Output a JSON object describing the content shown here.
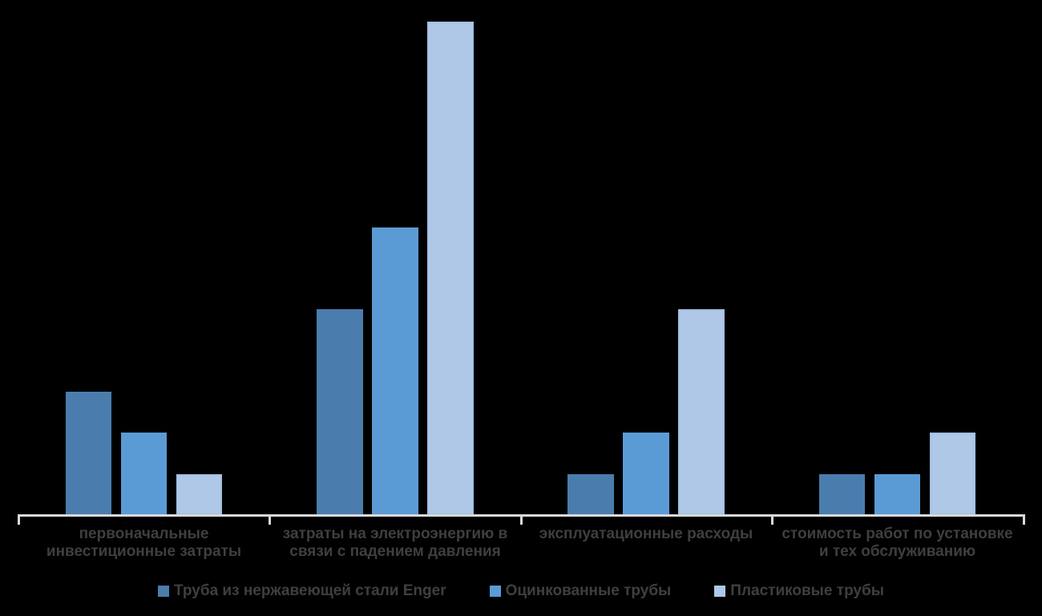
{
  "chart_data": {
    "type": "bar",
    "title": "",
    "xlabel": "",
    "ylabel": "",
    "ylim": [
      0,
      12
    ],
    "grid": false,
    "legend_position": "bottom",
    "background_color": "#000000",
    "axis_color": "#D9D9D9",
    "label_color": "#3F3F3F",
    "categories": [
      "первоначальные инвестиционные затраты",
      "затраты на электроэнергию в связи с падением давления",
      "эксплуатационные расходы",
      "стоимость работ по установке и тех обслуживанию"
    ],
    "category_lines": [
      [
        "первоначальные",
        "инвестиционные затраты"
      ],
      [
        "затраты на электроэнергию в",
        "связи с падением давления"
      ],
      [
        "эксплуатационные расходы"
      ],
      [
        "стоимость работ по установке",
        "и тех обслуживанию"
      ]
    ],
    "series": [
      {
        "name": "Труба  из нержавеющей стали Enger",
        "color": "#4A7DAE",
        "values": [
          3,
          5,
          1,
          1
        ]
      },
      {
        "name": "Оцинкованные трубы",
        "color": "#5B9BD5",
        "values": [
          2,
          7,
          2,
          1
        ]
      },
      {
        "name": "Пластиковые трубы",
        "color": "#AFC8E8",
        "border_color": "#A4C0E2",
        "values": [
          1,
          12,
          5,
          2
        ]
      }
    ]
  }
}
